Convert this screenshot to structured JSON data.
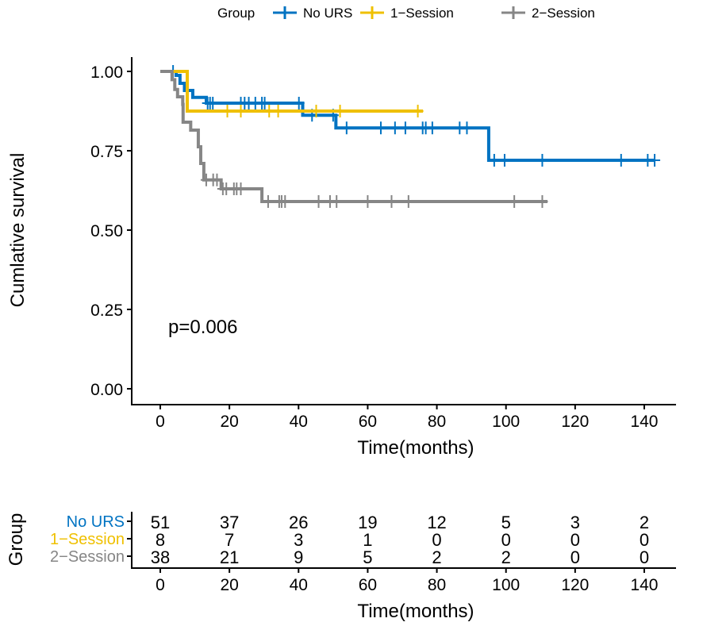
{
  "chart_data": {
    "type": "line",
    "subtype": "kaplan-meier",
    "xlabel": "Time(months)",
    "ylabel": "Cumlative survival",
    "xlim": [
      -6,
      150
    ],
    "ylim": [
      0,
      1
    ],
    "xticks": [
      "0",
      "20",
      "40",
      "60",
      "80",
      "100",
      "120",
      "140"
    ],
    "yticks": [
      "0.00",
      "0.25",
      "0.50",
      "0.75",
      "1.00"
    ],
    "annotation": "p=0.006",
    "legend": {
      "title": "Group",
      "placement": "top"
    },
    "series": [
      {
        "name": "No URS",
        "color": "#0073C2",
        "steps": [
          [
            0,
            1
          ],
          [
            4.6,
            0.9875
          ],
          [
            5.7,
            0.9625
          ],
          [
            7,
            0.94
          ],
          [
            9.4,
            0.918
          ],
          [
            13.3,
            0.9
          ],
          [
            41.2,
            0.862
          ],
          [
            50.8,
            0.822
          ],
          [
            95,
            0.72
          ],
          [
            143,
            0.72
          ]
        ],
        "censor": [
          3.7,
          13.7,
          14.4,
          15.2,
          23.3,
          24.4,
          25.6,
          27.5,
          29.4,
          30.2,
          40.1,
          43.9,
          50,
          53.9,
          63.8,
          67.9,
          70.9,
          75.9,
          76.8,
          78.7,
          86.6,
          88.7,
          96.6,
          99.6,
          110.5,
          133.3,
          141,
          143
        ]
      },
      {
        "name": "1-Session",
        "color": "#EFC000",
        "steps": [
          [
            0,
            1
          ],
          [
            7.8,
            0.875
          ],
          [
            76,
            0.875
          ]
        ],
        "censor": [
          19.4,
          23.3,
          31.5,
          34.1,
          45.1,
          52,
          74.5
        ]
      },
      {
        "name": "2-Session",
        "color": "#868686",
        "steps": [
          [
            0,
            1
          ],
          [
            3.4,
            0.974
          ],
          [
            4.2,
            0.943
          ],
          [
            5,
            0.92
          ],
          [
            6.5,
            0.896
          ],
          [
            6.6,
            0.84
          ],
          [
            8.8,
            0.815
          ],
          [
            11,
            0.7625
          ],
          [
            11.7,
            0.71
          ],
          [
            12.6,
            0.658
          ],
          [
            17.6,
            0.63
          ],
          [
            29.4,
            0.59
          ],
          [
            112,
            0.59
          ]
        ],
        "censor": [
          13.3,
          15.3,
          16.4,
          18.1,
          19.1,
          21.3,
          22.1,
          23.3,
          31.2,
          34.4,
          35.1,
          36.1,
          45.8,
          49.1,
          51,
          60,
          66.9,
          71.8,
          102.4,
          110.5
        ]
      }
    ],
    "risk_table": {
      "title": "Group",
      "xlabel": "Time(months)",
      "times": [
        0,
        20,
        40,
        60,
        80,
        100,
        120,
        140
      ],
      "rows": [
        {
          "name": "No URS",
          "values": [
            "51",
            "37",
            "26",
            "19",
            "12",
            "5",
            "3",
            "2"
          ]
        },
        {
          "name": "1−Session",
          "values": [
            "8",
            "7",
            "3",
            "1",
            "0",
            "0",
            "0",
            "0"
          ]
        },
        {
          "name": "2−Session",
          "values": [
            "38",
            "21",
            "9",
            "5",
            "2",
            "2",
            "0",
            "0"
          ]
        }
      ]
    }
  },
  "legend_labels": [
    "No URS",
    "1−Session",
    "2−Session"
  ]
}
